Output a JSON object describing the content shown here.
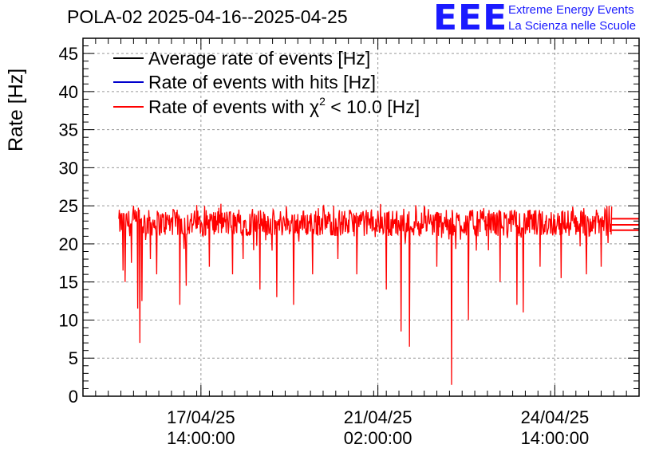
{
  "header": {
    "title": "POLA-02 2025-04-16--2025-04-25",
    "logo_text": "EEE",
    "logo_line1": "Extreme Energy Events",
    "logo_line2": "La Scienza nelle Scuole"
  },
  "chart_data": {
    "type": "line",
    "title": "POLA-02 2025-04-16--2025-04-25",
    "ylabel": "Rate [Hz]",
    "xlabel": "",
    "ylim": [
      0,
      47
    ],
    "yticks": [
      "0",
      "5",
      "10",
      "15",
      "20",
      "25",
      "30",
      "35",
      "40",
      "45"
    ],
    "ytick_values": [
      0,
      5,
      10,
      15,
      20,
      25,
      30,
      35,
      40,
      45
    ],
    "xticks": [
      {
        "date": "17/04/25",
        "time": "14:00:00",
        "hours": 38
      },
      {
        "date": "21/04/25",
        "time": "02:00:00",
        "hours": 122
      },
      {
        "date": "24/04/25",
        "time": "14:00:00",
        "hours": 206
      }
    ],
    "xlim_hours": [
      -18,
      246
    ],
    "data_range_hours": [
      -1,
      233
    ],
    "grid": true,
    "legend_position": "top-left",
    "legend": [
      {
        "label": "Average rate of events [Hz]",
        "color": "#000000"
      },
      {
        "label": "Rate of events with hits [Hz]",
        "color": "#0000cc"
      },
      {
        "label_prefix": "Rate of events with ",
        "label_symbol": "χ",
        "label_sup": "2",
        "label_suffix": " < 10.0 [Hz]",
        "color": "#ff0000"
      }
    ],
    "series": [
      {
        "name": "Rate of events with χ2 < 10.0 [Hz]",
        "color": "#ff0000",
        "typical_min": 21,
        "typical_max": 24.5,
        "dips": [
          {
            "hours": 1,
            "value": 16.5
          },
          {
            "hours": 2,
            "value": 15
          },
          {
            "hours": 5,
            "value": 17.5
          },
          {
            "hours": 8,
            "value": 11.5
          },
          {
            "hours": 9,
            "value": 7
          },
          {
            "hours": 10,
            "value": 12.5
          },
          {
            "hours": 14,
            "value": 18
          },
          {
            "hours": 17,
            "value": 16
          },
          {
            "hours": 28,
            "value": 12
          },
          {
            "hours": 31,
            "value": 14.5
          },
          {
            "hours": 42,
            "value": 17
          },
          {
            "hours": 53,
            "value": 16
          },
          {
            "hours": 58,
            "value": 18
          },
          {
            "hours": 66,
            "value": 14
          },
          {
            "hours": 74,
            "value": 13
          },
          {
            "hours": 82,
            "value": 12
          },
          {
            "hours": 91,
            "value": 16
          },
          {
            "hours": 103,
            "value": 18
          },
          {
            "hours": 112,
            "value": 16
          },
          {
            "hours": 126,
            "value": 14
          },
          {
            "hours": 133,
            "value": 8.5
          },
          {
            "hours": 137,
            "value": 6.5
          },
          {
            "hours": 150,
            "value": 17
          },
          {
            "hours": 157,
            "value": 1.5
          },
          {
            "hours": 165,
            "value": 10
          },
          {
            "hours": 180,
            "value": 15
          },
          {
            "hours": 188,
            "value": 12
          },
          {
            "hours": 191,
            "value": 11
          },
          {
            "hours": 199,
            "value": 17
          },
          {
            "hours": 209,
            "value": 15.5
          },
          {
            "hours": 221,
            "value": 16
          },
          {
            "hours": 228,
            "value": 17
          }
        ],
        "tail": {
          "start_hours": 233,
          "values": [
            21.8,
            22.5,
            23.3
          ]
        }
      }
    ]
  }
}
